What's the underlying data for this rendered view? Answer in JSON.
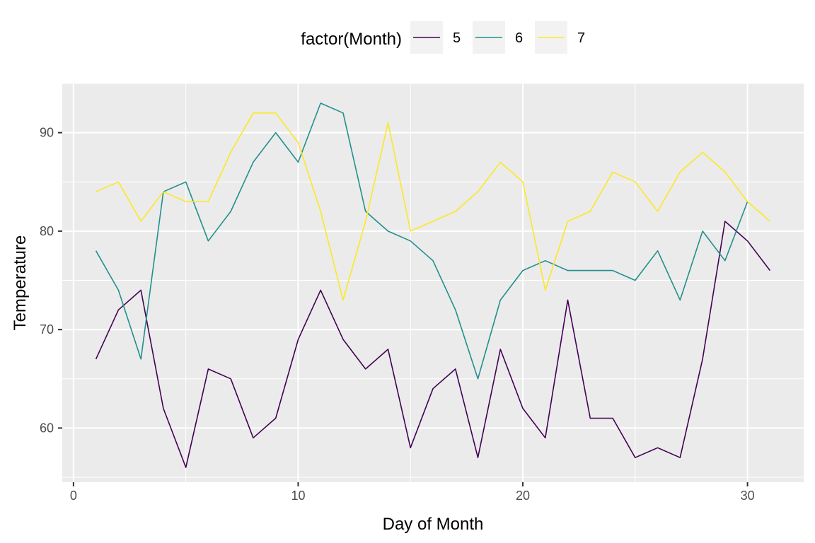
{
  "chart_data": {
    "type": "line",
    "xlabel": "Day of Month",
    "ylabel": "Temperature",
    "xlim": [
      -0.5,
      32.5
    ],
    "ylim": [
      54.5,
      95
    ],
    "x_ticks": [
      0,
      10,
      20,
      30
    ],
    "x_tick_labels": [
      "0",
      "10",
      "20",
      "30"
    ],
    "y_ticks": [
      60,
      70,
      80,
      90
    ],
    "y_tick_labels": [
      "60",
      "70",
      "80",
      "90"
    ],
    "grid": true,
    "legend": {
      "title": "factor(Month)",
      "position": "top"
    },
    "series": [
      {
        "name": "5",
        "color": "#440154",
        "x": [
          1,
          2,
          3,
          4,
          5,
          6,
          7,
          8,
          9,
          10,
          11,
          12,
          13,
          14,
          15,
          16,
          17,
          18,
          19,
          20,
          21,
          22,
          23,
          24,
          25,
          26,
          27,
          28,
          29,
          30,
          31
        ],
        "values": [
          67,
          72,
          74,
          62,
          56,
          66,
          65,
          59,
          61,
          69,
          74,
          69,
          66,
          68,
          58,
          64,
          66,
          57,
          68,
          62,
          59,
          73,
          61,
          61,
          57,
          58,
          57,
          67,
          81,
          79,
          76
        ]
      },
      {
        "name": "6",
        "color": "#21908C",
        "x": [
          1,
          2,
          3,
          4,
          5,
          6,
          7,
          8,
          9,
          10,
          11,
          12,
          13,
          14,
          15,
          16,
          17,
          18,
          19,
          20,
          21,
          22,
          23,
          24,
          25,
          26,
          27,
          28,
          29,
          30
        ],
        "values": [
          78,
          74,
          67,
          84,
          85,
          79,
          82,
          87,
          90,
          87,
          93,
          92,
          82,
          80,
          79,
          77,
          72,
          65,
          73,
          76,
          77,
          76,
          76,
          76,
          75,
          78,
          73,
          80,
          77,
          83
        ]
      },
      {
        "name": "7",
        "color": "#FDE725",
        "x": [
          1,
          2,
          3,
          4,
          5,
          6,
          7,
          8,
          9,
          10,
          11,
          12,
          13,
          14,
          15,
          16,
          17,
          18,
          19,
          20,
          21,
          22,
          23,
          24,
          25,
          26,
          27,
          28,
          29,
          30,
          31
        ],
        "values": [
          84,
          85,
          81,
          84,
          83,
          83,
          88,
          92,
          92,
          89,
          82,
          73,
          81,
          91,
          80,
          81,
          82,
          84,
          87,
          85,
          74,
          81,
          82,
          86,
          85,
          82,
          86,
          88,
          86,
          83,
          81
        ]
      }
    ]
  }
}
